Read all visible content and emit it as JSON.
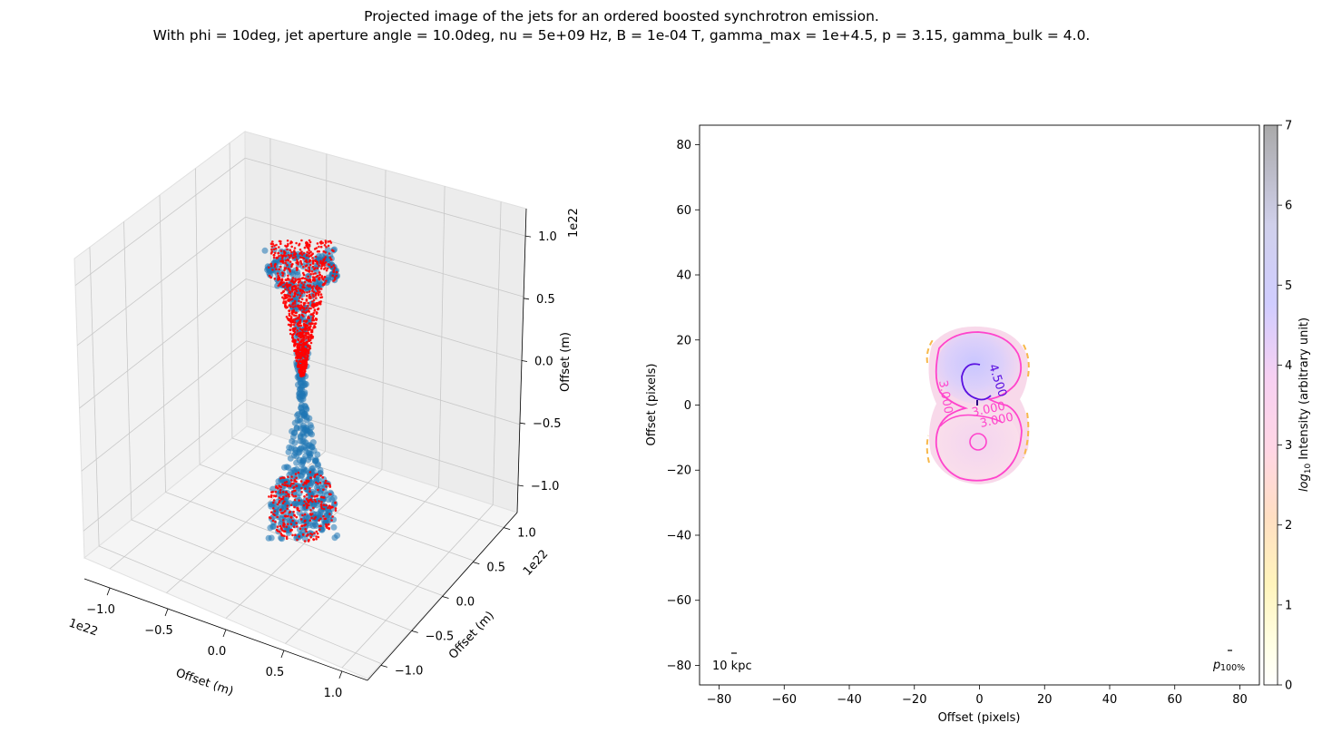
{
  "figure": {
    "title_line1": "Projected image of the jets for an ordered boosted synchrotron emission.",
    "title_line2": "With phi = 10deg, jet aperture angle = 10.0deg, nu = 5e+09 Hz, B = 1e-04 T, gamma_max = 1e+4.5, p = 3.15, gamma_bulk = 4.0."
  },
  "chart_data": [
    {
      "type": "scatter",
      "projection": "3d",
      "xlabel": "Offset (m)",
      "ylabel": "Offset (m)",
      "zlabel": "Offset (m)",
      "axis_multiplier": "1e22",
      "x_ticks": [
        "−1.0",
        "−0.5",
        "0.0",
        "0.5",
        "1.0"
      ],
      "y_ticks": [
        "−1.0",
        "−0.5",
        "0.0",
        "0.5",
        "1.0"
      ],
      "z_ticks": [
        "−1.0",
        "−0.5",
        "0.0",
        "0.5",
        "1.0"
      ],
      "xlim": [
        -1.2,
        1.2
      ],
      "ylim": [
        -1.2,
        1.2
      ],
      "zlim": [
        -1.2,
        1.2
      ],
      "grid": true,
      "series": [
        {
          "color": "#1f77b4",
          "description_points": "jet cone particles, both jets along z axis, lobes at z≈±0.8e22"
        },
        {
          "color": "#ff0000"
        }
      ]
    },
    {
      "type": "heatmap",
      "xlabel": "Offset (pixels)",
      "ylabel": "Offset (pixels)",
      "xlim": [
        -86,
        86
      ],
      "ylim": [
        -86,
        86
      ],
      "x_ticks": [
        "−80",
        "−60",
        "−40",
        "−20",
        "0",
        "20",
        "40",
        "60",
        "80"
      ],
      "y_ticks": [
        "−80",
        "−60",
        "−40",
        "−20",
        "0",
        "20",
        "40",
        "60",
        "80"
      ],
      "colorbar": {
        "label_prefix": "log",
        "label_sub": "10",
        "label_suffix": " Intensity (arbitrary unit)",
        "ticks": [
          "0",
          "1",
          "2",
          "3",
          "4",
          "5",
          "6",
          "7"
        ],
        "range": [
          0,
          7
        ]
      },
      "contour_labels": [
        "4.500",
        "3.000",
        "3.000",
        "3.000"
      ],
      "scale_bar_label": "10 kpc",
      "polarization_label_main": "p",
      "polarization_label_sub": "100%"
    }
  ]
}
